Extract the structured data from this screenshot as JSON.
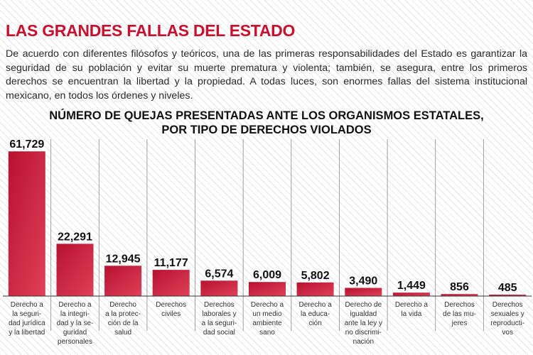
{
  "headline": "LAS GRANDES FALLAS DEL ESTADO",
  "intro": "De acuerdo con diferentes filósofos y teóricos, una de las primeras responsabilidades del Estado es garantizar la seguridad de su población y evitar su muerte prematura y violenta; también, se asegura, entre los primeros derechos se encuentran la libertad y la propiedad. A todas luces, son enormes fallas del sistema institucional mexicano, en todos los órdenes y niveles.",
  "colors": {
    "accent": "#c8102e",
    "bar_dark": "#b5122f",
    "bar_light": "#e0405a"
  },
  "chart_data": {
    "type": "bar",
    "title_lines": [
      "NÚMERO DE QUEJAS PRESENTADAS ANTE LOS ORGANISMOS ESTATALES,",
      "POR TIPO DE DERECHOS VIOLADOS"
    ],
    "categories": [
      [
        "Derecho a",
        "la seguri-",
        "dad jurídica",
        "y la libertad"
      ],
      [
        "Derecho a",
        "la integri-",
        "dad y la se-",
        "guridad",
        "personales"
      ],
      [
        "Derecho",
        "a la protec-",
        "ción de la",
        "salud"
      ],
      [
        "Derechos",
        "civiles"
      ],
      [
        "Derechos",
        "laborales y",
        "a la seguri-",
        "dad social"
      ],
      [
        "Derecho a",
        "un medio",
        "ambiente",
        "sano"
      ],
      [
        "Derecho a",
        "la educa-",
        "ción"
      ],
      [
        "Derecho de",
        "igualdad",
        "ante la ley y",
        "no discrimi-",
        "nación"
      ],
      [
        "Derecho a",
        "la vida"
      ],
      [
        "Derechos",
        "de las mu-",
        "jeres"
      ],
      [
        "Derechos",
        "sexuales y",
        "reproducti-",
        "vos"
      ]
    ],
    "values": [
      61729,
      22291,
      12945,
      11177,
      6574,
      6009,
      5802,
      3490,
      1449,
      856,
      485
    ],
    "value_labels": [
      "61,729",
      "22,291",
      "12,945",
      "11,177",
      "6,574",
      "6,009",
      "5,802",
      "3,490",
      "1,449",
      "856",
      "485"
    ],
    "ylim": [
      0,
      63000
    ],
    "grid": "vertical separators",
    "legend": "none"
  }
}
